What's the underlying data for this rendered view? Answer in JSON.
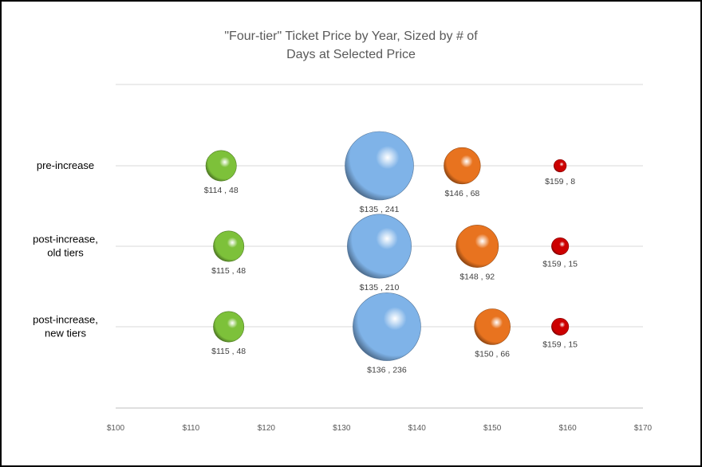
{
  "chart_data": {
    "type": "scatter",
    "subtype": "bubble",
    "title_line1": "\"Four-tier\" Ticket Price by Year, Sized by # of",
    "title_line2": "Days at Selected Price",
    "categories": [
      "pre-increase",
      "post-increase, old tiers",
      "post-increase, new tiers"
    ],
    "category_lines": [
      [
        "pre-increase"
      ],
      [
        "post-increase,",
        "old tiers"
      ],
      [
        "post-increase,",
        "new tiers"
      ]
    ],
    "x_ticks": [
      "$100",
      "$110",
      "$120",
      "$130",
      "$140",
      "$150",
      "$160",
      "$170"
    ],
    "xlim": [
      100,
      170
    ],
    "grid": "horizontal",
    "legend": "none",
    "tier_colors": [
      "#7dc13a",
      "#7fb3e8",
      "#e8731f",
      "#cc0000"
    ],
    "points": [
      {
        "category": 0,
        "tier": 0,
        "price": 114,
        "days": 48,
        "label": "$114 , 48"
      },
      {
        "category": 0,
        "tier": 1,
        "price": 135,
        "days": 241,
        "label": "$135 , 241"
      },
      {
        "category": 0,
        "tier": 2,
        "price": 146,
        "days": 68,
        "label": "$146 , 68"
      },
      {
        "category": 0,
        "tier": 3,
        "price": 159,
        "days": 8,
        "label": "$159 , 8"
      },
      {
        "category": 1,
        "tier": 0,
        "price": 115,
        "days": 48,
        "label": "$115 , 48"
      },
      {
        "category": 1,
        "tier": 1,
        "price": 135,
        "days": 210,
        "label": "$135 , 210"
      },
      {
        "category": 1,
        "tier": 2,
        "price": 148,
        "days": 92,
        "label": "$148 , 92"
      },
      {
        "category": 1,
        "tier": 3,
        "price": 159,
        "days": 15,
        "label": "$159 , 15"
      },
      {
        "category": 2,
        "tier": 0,
        "price": 115,
        "days": 48,
        "label": "$115 , 48"
      },
      {
        "category": 2,
        "tier": 1,
        "price": 136,
        "days": 236,
        "label": "$136 , 236"
      },
      {
        "category": 2,
        "tier": 2,
        "price": 150,
        "days": 66,
        "label": "$150 , 66"
      },
      {
        "category": 2,
        "tier": 3,
        "price": 159,
        "days": 15,
        "label": "$159 , 15"
      }
    ]
  }
}
